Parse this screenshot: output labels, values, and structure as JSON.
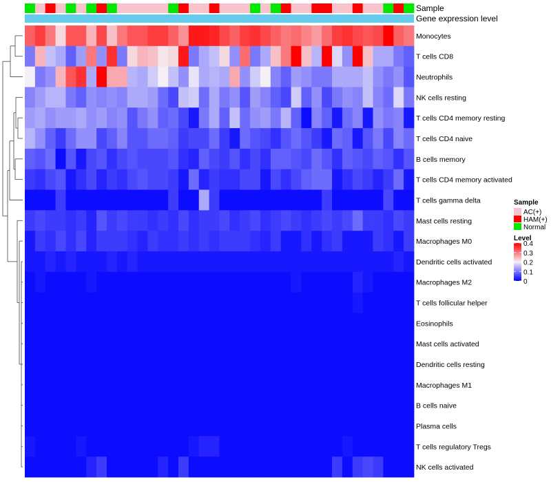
{
  "chart_data": {
    "type": "heatmap",
    "annotations": [
      "Sample",
      "Gene expression level"
    ],
    "rows": [
      "Monocytes",
      "T cells CD8",
      "Neutrophils",
      "NK cells resting",
      "T cells CD4 memory resting",
      "T cells CD4 naive",
      "B cells memory",
      "T cells CD4 memory activated",
      "T cells gamma delta",
      "Mast cells resting",
      "Macrophages M0",
      "Dendritic cells activated",
      "Macrophages M2",
      "T cells follicular helper",
      "Eosinophils",
      "Mast cells activated",
      "Dendritic cells resting",
      "Macrophages M1",
      "B cells naive",
      "Plasma cells",
      "T cells regulatory  Tregs",
      "NK cells activated"
    ],
    "samples": [
      "N",
      "A",
      "H",
      "A",
      "N",
      "A",
      "N",
      "H",
      "N",
      "A",
      "A",
      "A",
      "A",
      "A",
      "N",
      "H",
      "A",
      "A",
      "H",
      "A",
      "A",
      "A",
      "N",
      "A",
      "N",
      "H",
      "A",
      "A",
      "H",
      "H",
      "A",
      "A",
      "H",
      "A",
      "A",
      "N",
      "H",
      "N"
    ],
    "values": [
      [
        0.32,
        0.35,
        0.3,
        0.22,
        0.33,
        0.33,
        0.25,
        0.34,
        0.24,
        0.3,
        0.33,
        0.33,
        0.35,
        0.35,
        0.32,
        0.28,
        0.38,
        0.38,
        0.37,
        0.34,
        0.32,
        0.35,
        0.36,
        0.34,
        0.32,
        0.3,
        0.31,
        0.29,
        0.27,
        0.31,
        0.35,
        0.36,
        0.34,
        0.33,
        0.34,
        0.4,
        0.32,
        0.3
      ],
      [
        0.1,
        0.25,
        0.16,
        0.14,
        0.08,
        0.13,
        0.3,
        0.12,
        0.36,
        0.1,
        0.22,
        0.25,
        0.24,
        0.21,
        0.22,
        0.38,
        0.1,
        0.14,
        0.16,
        0.22,
        0.12,
        0.31,
        0.1,
        0.14,
        0.24,
        0.3,
        0.4,
        0.24,
        0.15,
        0.4,
        0.18,
        0.12,
        0.4,
        0.24,
        0.14,
        0.14,
        0.1,
        0.08
      ],
      [
        0.2,
        0.1,
        0.12,
        0.25,
        0.33,
        0.36,
        0.14,
        0.4,
        0.26,
        0.26,
        0.15,
        0.14,
        0.17,
        0.2,
        0.16,
        0.12,
        0.19,
        0.14,
        0.15,
        0.14,
        0.26,
        0.12,
        0.17,
        0.2,
        0.11,
        0.08,
        0.13,
        0.12,
        0.1,
        0.1,
        0.14,
        0.14,
        0.14,
        0.16,
        0.12,
        0.1,
        0.12,
        0.07
      ],
      [
        0.11,
        0.13,
        0.15,
        0.15,
        0.1,
        0.08,
        0.12,
        0.11,
        0.12,
        0.11,
        0.14,
        0.14,
        0.13,
        0.09,
        0.06,
        0.16,
        0.17,
        0.09,
        0.14,
        0.1,
        0.12,
        0.07,
        0.13,
        0.11,
        0.08,
        0.06,
        0.17,
        0.08,
        0.12,
        0.06,
        0.1,
        0.12,
        0.11,
        0.16,
        0.11,
        0.09,
        0.18,
        0.1
      ],
      [
        0.13,
        0.14,
        0.12,
        0.13,
        0.13,
        0.14,
        0.12,
        0.13,
        0.11,
        0.12,
        0.07,
        0.1,
        0.12,
        0.08,
        0.09,
        0.06,
        0.02,
        0.1,
        0.14,
        0.08,
        0.16,
        0.09,
        0.12,
        0.13,
        0.1,
        0.15,
        0.08,
        0.01,
        0.11,
        0.08,
        0.02,
        0.09,
        0.11,
        0.02,
        0.12,
        0.1,
        0.11,
        0.02
      ],
      [
        0.15,
        0.12,
        0.08,
        0.05,
        0.09,
        0.12,
        0.12,
        0.06,
        0.08,
        0.11,
        0.07,
        0.07,
        0.09,
        0.09,
        0.08,
        0.05,
        0.06,
        0.06,
        0.09,
        0.05,
        0.02,
        0.09,
        0.07,
        0.06,
        0.04,
        0.07,
        0.09,
        0.07,
        0.05,
        0.02,
        0.09,
        0.08,
        0.02,
        0.07,
        0.1,
        0.06,
        0.11,
        0.09
      ],
      [
        0.08,
        0.07,
        0.09,
        0.01,
        0.07,
        0.02,
        0.06,
        0.07,
        0.04,
        0.06,
        0.07,
        0.06,
        0.06,
        0.06,
        0.07,
        0.04,
        0.03,
        0.08,
        0.06,
        0.05,
        0.07,
        0.04,
        0.06,
        0.04,
        0.08,
        0.08,
        0.07,
        0.06,
        0.09,
        0.07,
        0.04,
        0.08,
        0.07,
        0.06,
        0.08,
        0.07,
        0.04,
        0.07
      ],
      [
        0.05,
        0.04,
        0.06,
        0.07,
        0.02,
        0.04,
        0.06,
        0.03,
        0.05,
        0.04,
        0.06,
        0.07,
        0.06,
        0.06,
        0.05,
        0.02,
        0.09,
        0.03,
        0.05,
        0.04,
        0.04,
        0.06,
        0.06,
        0.02,
        0.06,
        0.04,
        0.06,
        0.08,
        0.09,
        0.09,
        0.02,
        0.04,
        0.06,
        0.05,
        0.03,
        0.05,
        0.09,
        0.02
      ],
      [
        0.01,
        0.01,
        0.01,
        0.05,
        0.01,
        0.01,
        0.01,
        0.01,
        0.01,
        0.01,
        0.01,
        0.01,
        0.01,
        0.01,
        0.05,
        0.01,
        0.01,
        0.14,
        0.05,
        0.01,
        0.01,
        0.01,
        0.01,
        0.01,
        0.01,
        0.01,
        0.01,
        0.01,
        0.01,
        0.05,
        0.01,
        0.01,
        0.01,
        0.01,
        0.01,
        0.06,
        0.01,
        0.01
      ],
      [
        0.05,
        0.06,
        0.05,
        0.05,
        0.04,
        0.05,
        0.03,
        0.07,
        0.05,
        0.06,
        0.05,
        0.05,
        0.04,
        0.05,
        0.04,
        0.06,
        0.04,
        0.05,
        0.05,
        0.06,
        0.04,
        0.05,
        0.06,
        0.04,
        0.05,
        0.06,
        0.05,
        0.04,
        0.05,
        0.06,
        0.05,
        0.06,
        0.09,
        0.05,
        0.05,
        0.04,
        0.06,
        0.05
      ],
      [
        0.02,
        0.05,
        0.04,
        0.06,
        0.04,
        0.06,
        0.03,
        0.05,
        0.05,
        0.05,
        0.04,
        0.03,
        0.05,
        0.04,
        0.04,
        0.05,
        0.04,
        0.05,
        0.04,
        0.05,
        0.05,
        0.05,
        0.04,
        0.03,
        0.05,
        0.02,
        0.02,
        0.04,
        0.02,
        0.04,
        0.05,
        0.02,
        0.02,
        0.02,
        0.05,
        0.04,
        0.02,
        0.05
      ],
      [
        0.02,
        0.02,
        0.03,
        0.02,
        0.03,
        0.02,
        0.02,
        0.02,
        0.03,
        0.02,
        0.03,
        0.02,
        0.02,
        0.02,
        0.02,
        0.02,
        0.02,
        0.02,
        0.02,
        0.02,
        0.02,
        0.02,
        0.02,
        0.02,
        0.02,
        0.02,
        0.02,
        0.02,
        0.02,
        0.02,
        0.02,
        0.02,
        0.02,
        0.02,
        0.02,
        0.02,
        0.03,
        0.02
      ],
      [
        0.01,
        0.02,
        0.01,
        0.01,
        0.01,
        0.01,
        0.02,
        0.01,
        0.01,
        0.01,
        0.01,
        0.01,
        0.01,
        0.01,
        0.01,
        0.01,
        0.01,
        0.01,
        0.01,
        0.01,
        0.01,
        0.01,
        0.01,
        0.01,
        0.01,
        0.01,
        0.02,
        0.01,
        0.01,
        0.01,
        0.01,
        0.01,
        0.03,
        0.02,
        0.01,
        0.01,
        0.01,
        0.01
      ],
      [
        0.01,
        0.01,
        0.01,
        0.01,
        0.01,
        0.01,
        0.01,
        0.01,
        0.01,
        0.01,
        0.01,
        0.01,
        0.01,
        0.01,
        0.01,
        0.01,
        0.01,
        0.01,
        0.01,
        0.01,
        0.01,
        0.01,
        0.01,
        0.01,
        0.01,
        0.01,
        0.01,
        0.01,
        0.01,
        0.01,
        0.01,
        0.01,
        0.02,
        0.01,
        0.01,
        0.01,
        0.01,
        0.01
      ],
      [
        0.01,
        0.01,
        0.01,
        0.01,
        0.01,
        0.01,
        0.01,
        0.01,
        0.01,
        0.01,
        0.01,
        0.01,
        0.01,
        0.01,
        0.01,
        0.01,
        0.01,
        0.01,
        0.01,
        0.01,
        0.01,
        0.01,
        0.01,
        0.01,
        0.01,
        0.01,
        0.01,
        0.01,
        0.01,
        0.01,
        0.01,
        0.01,
        0.01,
        0.01,
        0.01,
        0.01,
        0.01,
        0.01
      ],
      [
        0.01,
        0.01,
        0.01,
        0.01,
        0.01,
        0.01,
        0.01,
        0.01,
        0.01,
        0.01,
        0.01,
        0.01,
        0.01,
        0.01,
        0.01,
        0.01,
        0.01,
        0.01,
        0.01,
        0.01,
        0.01,
        0.01,
        0.01,
        0.01,
        0.01,
        0.01,
        0.01,
        0.01,
        0.01,
        0.01,
        0.01,
        0.01,
        0.01,
        0.01,
        0.01,
        0.01,
        0.01,
        0.01
      ],
      [
        0.01,
        0.01,
        0.01,
        0.01,
        0.01,
        0.01,
        0.01,
        0.01,
        0.01,
        0.01,
        0.01,
        0.01,
        0.01,
        0.01,
        0.01,
        0.01,
        0.01,
        0.01,
        0.01,
        0.01,
        0.01,
        0.01,
        0.01,
        0.01,
        0.01,
        0.01,
        0.01,
        0.01,
        0.01,
        0.01,
        0.01,
        0.01,
        0.01,
        0.01,
        0.01,
        0.01,
        0.01,
        0.01
      ],
      [
        0.01,
        0.01,
        0.01,
        0.01,
        0.01,
        0.01,
        0.01,
        0.01,
        0.01,
        0.01,
        0.01,
        0.01,
        0.01,
        0.01,
        0.01,
        0.01,
        0.01,
        0.01,
        0.01,
        0.01,
        0.01,
        0.01,
        0.01,
        0.01,
        0.01,
        0.01,
        0.01,
        0.01,
        0.01,
        0.01,
        0.01,
        0.01,
        0.01,
        0.01,
        0.01,
        0.01,
        0.01,
        0.01
      ],
      [
        0.01,
        0.01,
        0.01,
        0.01,
        0.01,
        0.01,
        0.01,
        0.01,
        0.01,
        0.01,
        0.01,
        0.01,
        0.01,
        0.01,
        0.01,
        0.01,
        0.01,
        0.01,
        0.01,
        0.01,
        0.01,
        0.01,
        0.01,
        0.01,
        0.01,
        0.01,
        0.01,
        0.01,
        0.01,
        0.01,
        0.01,
        0.01,
        0.01,
        0.01,
        0.01,
        0.01,
        0.01,
        0.01
      ],
      [
        0.01,
        0.01,
        0.01,
        0.01,
        0.01,
        0.01,
        0.01,
        0.01,
        0.01,
        0.01,
        0.01,
        0.01,
        0.01,
        0.01,
        0.01,
        0.01,
        0.01,
        0.01,
        0.01,
        0.01,
        0.01,
        0.01,
        0.01,
        0.01,
        0.01,
        0.01,
        0.01,
        0.01,
        0.01,
        0.01,
        0.01,
        0.01,
        0.01,
        0.01,
        0.01,
        0.01,
        0.01,
        0.01
      ],
      [
        0.02,
        0.01,
        0.01,
        0.01,
        0.01,
        0.02,
        0.01,
        0.01,
        0.01,
        0.01,
        0.01,
        0.01,
        0.01,
        0.01,
        0.01,
        0.01,
        0.02,
        0.03,
        0.03,
        0.01,
        0.01,
        0.01,
        0.01,
        0.01,
        0.01,
        0.01,
        0.01,
        0.01,
        0.01,
        0.01,
        0.01,
        0.02,
        0.01,
        0.01,
        0.01,
        0.01,
        0.01,
        0.01
      ],
      [
        0.01,
        0.01,
        0.01,
        0.01,
        0.01,
        0.01,
        0.03,
        0.05,
        0.01,
        0.01,
        0.01,
        0.01,
        0.01,
        0.03,
        0.01,
        0.05,
        0.01,
        0.01,
        0.01,
        0.01,
        0.01,
        0.01,
        0.01,
        0.01,
        0.01,
        0.01,
        0.01,
        0.01,
        0.01,
        0.01,
        0.05,
        0.01,
        0.05,
        0.06,
        0.05,
        0.01,
        0.01,
        0.01
      ]
    ],
    "legend": {
      "sample_title": "Sample",
      "sample_entries": [
        {
          "key": "A",
          "label": "AC(+)",
          "color": "#F7C4CD"
        },
        {
          "key": "H",
          "label": "HAM(+)",
          "color": "#FF0000"
        },
        {
          "key": "N",
          "label": "Normal",
          "color": "#00E800"
        }
      ],
      "level_title": "Level",
      "level_ticks": [
        "0.4",
        "0.3",
        "0.2",
        "0.1",
        "0"
      ],
      "level_range": [
        0,
        0.4
      ]
    },
    "colors": {
      "low": "#0000FF",
      "mid": "#F5F0F8",
      "high": "#FF0000",
      "gene_expression_bar": "#66CCEE",
      "dendrogram": "#444444"
    }
  }
}
